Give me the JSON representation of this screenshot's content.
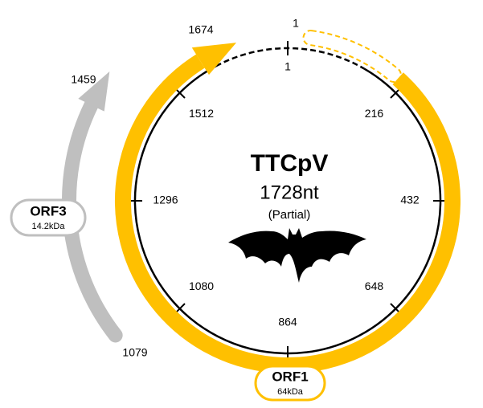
{
  "genome": {
    "name": "TTCpV",
    "length": "1728nt",
    "note": "(Partial)",
    "ticks": [
      "1",
      "216",
      "432",
      "648",
      "864",
      "1080",
      "1296",
      "1512"
    ]
  },
  "orfs": [
    {
      "name": "ORF1",
      "mass": "64kDa",
      "start": "1",
      "end": "1674"
    },
    {
      "name": "ORF3",
      "mass": "14.2kDa",
      "start": "1079",
      "end": "1459"
    }
  ]
}
